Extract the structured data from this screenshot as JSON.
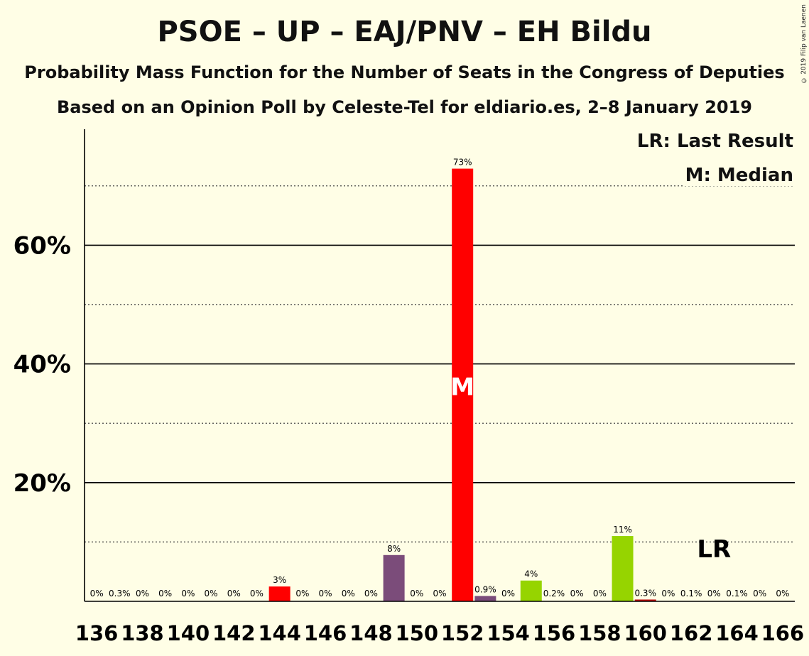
{
  "copyright": "© 2019 Filip van Laenen",
  "chart_data": {
    "type": "bar",
    "title": "PSOE – UP – EAJ/PNV – EH Bildu",
    "subtitle": "Probability Mass Function for the Number of Seats in the Congress of Deputies",
    "subtitle2": "Based on an Opinion Poll by Celeste-Tel for eldiario.es, 2–8 January 2019",
    "legend": {
      "last_result": "LR: Last Result",
      "median": "M: Median"
    },
    "x_ticks": [
      "136",
      "138",
      "140",
      "142",
      "144",
      "146",
      "148",
      "150",
      "152",
      "154",
      "156",
      "158",
      "160",
      "162",
      "164",
      "166"
    ],
    "y_ticks": [
      {
        "value": 20,
        "label": "20%"
      },
      {
        "value": 40,
        "label": "40%"
      },
      {
        "value": 60,
        "label": "60%"
      }
    ],
    "ylim": [
      0,
      79
    ],
    "dotted_gridlines": [
      10,
      30,
      50,
      70
    ],
    "solid_gridlines": [
      20,
      40,
      60
    ],
    "median_seat": 152,
    "median_marker": "M",
    "last_result_seat": 163,
    "last_result_marker": "LR",
    "colors": {
      "red": "#FF0000",
      "purple": "#7B4C7A",
      "green": "#96D400",
      "darkred": "#C00000"
    },
    "bars": [
      {
        "seat": 136,
        "value": 0,
        "label": "0%"
      },
      {
        "seat": 137,
        "value": 0.3,
        "label": "0.3%"
      },
      {
        "seat": 138,
        "value": 0,
        "label": "0%"
      },
      {
        "seat": 139,
        "value": 0,
        "label": "0%"
      },
      {
        "seat": 140,
        "value": 0,
        "label": "0%"
      },
      {
        "seat": 141,
        "value": 0,
        "label": "0%"
      },
      {
        "seat": 142,
        "value": 0,
        "label": "0%"
      },
      {
        "seat": 143,
        "value": 0,
        "label": "0%"
      },
      {
        "seat": 144,
        "value": 2.5,
        "label": "3%",
        "color": "#FF0000"
      },
      {
        "seat": 145,
        "value": 0,
        "label": "0%"
      },
      {
        "seat": 146,
        "value": 0,
        "label": "0%"
      },
      {
        "seat": 147,
        "value": 0,
        "label": "0%"
      },
      {
        "seat": 148,
        "value": 0,
        "label": "0%"
      },
      {
        "seat": 149,
        "value": 7.8,
        "label": "8%",
        "color": "#7B4C7A"
      },
      {
        "seat": 150,
        "value": 0,
        "label": "0%"
      },
      {
        "seat": 151,
        "value": 0,
        "label": "0%"
      },
      {
        "seat": 152,
        "value": 72.9,
        "label": "73%",
        "color": "#FF0000"
      },
      {
        "seat": 153,
        "value": 0.9,
        "label": "0.9%",
        "color": "#7B4C7A"
      },
      {
        "seat": 154,
        "value": 0,
        "label": "0%"
      },
      {
        "seat": 155,
        "value": 3.5,
        "label": "4%",
        "color": "#96D400"
      },
      {
        "seat": 156,
        "value": 0.2,
        "label": "0.2%"
      },
      {
        "seat": 157,
        "value": 0,
        "label": "0%"
      },
      {
        "seat": 158,
        "value": 0,
        "label": "0%"
      },
      {
        "seat": 159,
        "value": 11.0,
        "label": "11%",
        "color": "#96D400"
      },
      {
        "seat": 160,
        "value": 0.3,
        "label": "0.3%",
        "color": "#C00000"
      },
      {
        "seat": 161,
        "value": 0,
        "label": "0%"
      },
      {
        "seat": 162,
        "value": 0.1,
        "label": "0.1%"
      },
      {
        "seat": 163,
        "value": 0,
        "label": "0%"
      },
      {
        "seat": 164,
        "value": 0.1,
        "label": "0.1%"
      },
      {
        "seat": 165,
        "value": 0,
        "label": "0%"
      },
      {
        "seat": 166,
        "value": 0,
        "label": "0%"
      }
    ]
  }
}
